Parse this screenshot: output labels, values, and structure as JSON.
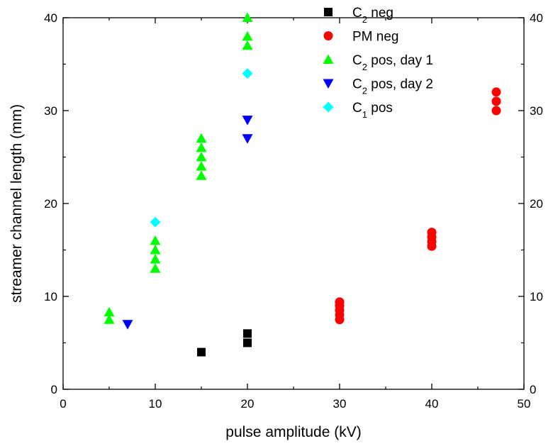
{
  "chart_data": {
    "type": "scatter",
    "title": "",
    "xlabel": "pulse amplitude (kV)",
    "ylabel": "streamer channel length (mm)",
    "xlim": [
      0,
      50
    ],
    "ylim": [
      0,
      40
    ],
    "x_ticks": [
      0,
      10,
      20,
      30,
      40,
      50
    ],
    "y_ticks": [
      0,
      10,
      20,
      30,
      40
    ],
    "right_axis_mirrored": true,
    "grid": false,
    "legend_position": "top-right",
    "series": [
      {
        "name": "C2 neg",
        "label_main": "C",
        "label_sub": "2",
        "label_rest": " neg",
        "marker": "square",
        "color": "#000000",
        "points": [
          [
            15,
            4
          ],
          [
            20,
            5
          ],
          [
            20,
            6
          ]
        ]
      },
      {
        "name": "PM neg",
        "label_main": "PM neg",
        "label_sub": "",
        "label_rest": "",
        "marker": "circle",
        "color": "#ff0000",
        "points": [
          [
            30,
            7.5
          ],
          [
            30,
            8
          ],
          [
            30,
            8.5
          ],
          [
            30,
            9
          ],
          [
            30,
            9.4
          ],
          [
            40,
            15.4
          ],
          [
            40,
            15.9
          ],
          [
            40,
            16.4
          ],
          [
            40,
            16.9
          ],
          [
            47,
            30
          ],
          [
            47,
            31
          ],
          [
            47,
            32
          ]
        ]
      },
      {
        "name": "C2 pos, day 1",
        "label_main": "C",
        "label_sub": "2",
        "label_rest": " pos, day 1",
        "marker": "triangle-up",
        "color": "#00ff00",
        "points": [
          [
            5,
            7.5
          ],
          [
            5,
            8.3
          ],
          [
            10,
            13
          ],
          [
            10,
            14
          ],
          [
            10,
            15
          ],
          [
            10,
            16
          ],
          [
            15,
            23
          ],
          [
            15,
            24
          ],
          [
            15,
            25
          ],
          [
            15,
            26
          ],
          [
            15,
            27
          ],
          [
            20,
            37
          ],
          [
            20,
            38
          ],
          [
            20,
            40
          ]
        ]
      },
      {
        "name": "C2 pos, day 2",
        "label_main": "C",
        "label_sub": "2",
        "label_rest": " pos, day 2",
        "marker": "triangle-down",
        "color": "#0000ff",
        "points": [
          [
            7,
            7
          ],
          [
            20,
            27
          ],
          [
            20,
            29
          ]
        ]
      },
      {
        "name": "C1 pos",
        "label_main": "C",
        "label_sub": "1",
        "label_rest": " pos",
        "marker": "diamond",
        "color": "#00ffff",
        "points": [
          [
            10,
            18
          ],
          [
            20,
            34
          ]
        ]
      }
    ]
  }
}
